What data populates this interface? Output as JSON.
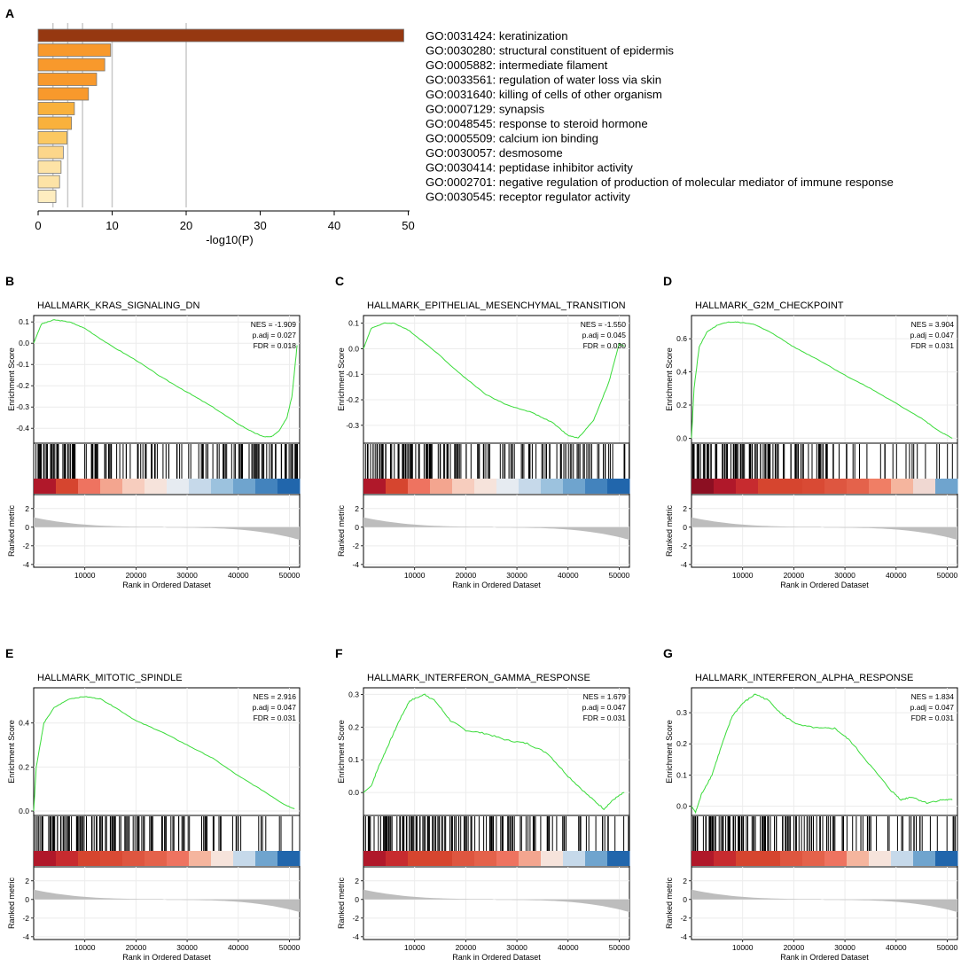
{
  "panel_a": {
    "letter": "A",
    "xlabel": "-log10(P)",
    "ticks": [
      0,
      10,
      20,
      30,
      40,
      50
    ],
    "terms": [
      {
        "label": "GO:0031424: keratinization",
        "value": 49.4,
        "color": "#963811"
      },
      {
        "label": "GO:0030280: structural constituent of epidermis",
        "value": 9.8,
        "color": "#F8992C"
      },
      {
        "label": "GO:0005882: intermediate filament",
        "value": 9.0,
        "color": "#F8992C"
      },
      {
        "label": "GO:0033561: regulation of water loss via skin",
        "value": 7.9,
        "color": "#F8992C"
      },
      {
        "label": "GO:0031640: killing of cells of other organism",
        "value": 6.8,
        "color": "#F8992C"
      },
      {
        "label": "GO:0007129: synapsis",
        "value": 4.9,
        "color": "#F9B13C"
      },
      {
        "label": "GO:0048545: response to steroid hormone",
        "value": 4.5,
        "color": "#F9B13C"
      },
      {
        "label": "GO:0005509: calcium ion binding",
        "value": 3.9,
        "color": "#FBC862"
      },
      {
        "label": "GO:0030057: desmosome",
        "value": 3.4,
        "color": "#FCD68A"
      },
      {
        "label": "GO:0030414: peptidase inhibitor activity",
        "value": 3.1,
        "color": "#FDE3A6"
      },
      {
        "label": "GO:0002701: negative regulation of production of molecular mediator of immune response",
        "value": 2.9,
        "color": "#FDE3A6"
      },
      {
        "label": "GO:0030545: receptor regulator activity",
        "value": 2.4,
        "color": "#FEEDC0"
      }
    ]
  },
  "gsea_common": {
    "ylabel_es": "Enrichment Score",
    "ylabel_rank": "Ranked metric",
    "xlabel": "Rank in Ordered Dataset",
    "x_ticks": [
      "10000",
      "20000",
      "30000",
      "40000",
      "50000"
    ],
    "rank_ticks": [
      "2",
      "0",
      "-2",
      "-4"
    ],
    "line_color": "#3ADB3A"
  },
  "chart_data": [
    {
      "type": "bar",
      "title": "GO enrichment",
      "xlabel": "-log10(P)",
      "orientation": "horizontal",
      "categories": [
        "GO:0031424: keratinization",
        "GO:0030280: structural constituent of epidermis",
        "GO:0005882: intermediate filament",
        "GO:0033561: regulation of water loss via skin",
        "GO:0031640: killing of cells of other organism",
        "GO:0007129: synapsis",
        "GO:0048545: response to steroid hormone",
        "GO:0005509: calcium ion binding",
        "GO:0030057: desmosome",
        "GO:0030414: peptidase inhibitor activity",
        "GO:0002701: negative regulation of production of molecular mediator of immune response",
        "GO:0030545: receptor regulator activity"
      ],
      "values": [
        49.4,
        9.8,
        9.0,
        7.9,
        6.8,
        4.9,
        4.5,
        3.9,
        3.4,
        3.1,
        2.9,
        2.4
      ],
      "xlim": [
        0,
        50
      ]
    },
    {
      "type": "line",
      "panel": "B",
      "title": "HALLMARK_KRAS_SIGNALING_DN",
      "stats": {
        "nes": "NES = -1.909",
        "padj": "p.adj = 0.027",
        "fdr": "FDR = 0.018"
      },
      "ylim": [
        -0.47,
        0.13
      ],
      "y_ticks": [
        "0.1",
        "0.0",
        "-0.1",
        "-0.2",
        "-0.3",
        "-0.4"
      ],
      "y_tick_vals": [
        0.1,
        0.0,
        -0.1,
        -0.2,
        -0.3,
        -0.4
      ],
      "x": [
        0,
        1500,
        4000,
        7000,
        10000,
        15000,
        20000,
        25000,
        30000,
        35000,
        40000,
        43000,
        45000,
        46500,
        48000,
        49500,
        50500,
        51500
      ],
      "y": [
        0.0,
        0.09,
        0.11,
        0.1,
        0.07,
        -0.01,
        -0.08,
        -0.16,
        -0.23,
        -0.3,
        -0.38,
        -0.42,
        -0.44,
        -0.44,
        -0.41,
        -0.35,
        -0.25,
        -0.01
      ],
      "hit_density": [
        1.0,
        0.95,
        0.7,
        0.55,
        0.5,
        0.55,
        0.45,
        0.5,
        0.55,
        0.7,
        0.9,
        0.95
      ],
      "heat": [
        "#B0182A",
        "#D6452F",
        "#EE7360",
        "#F3A58F",
        "#F7CDBE",
        "#F6E3DB",
        "#E6EBF1",
        "#C6D9EA",
        "#9CC2DE",
        "#6FA4CE",
        "#4383BD",
        "#2166AC"
      ]
    },
    {
      "type": "line",
      "panel": "C",
      "title": "HALLMARK_EPITHELIAL_MESENCHYMAL_TRANSITION",
      "stats": {
        "nes": "NES = -1.550",
        "padj": "p.adj = 0.045",
        "fdr": "FDR = 0.030"
      },
      "ylim": [
        -0.37,
        0.13
      ],
      "y_ticks": [
        "0.1",
        "0.0",
        "-0.1",
        "-0.2",
        "-0.3"
      ],
      "y_tick_vals": [
        0.1,
        0.0,
        -0.1,
        -0.2,
        -0.3
      ],
      "x": [
        0,
        1500,
        4000,
        6000,
        9000,
        14000,
        19000,
        24000,
        28000,
        33000,
        37000,
        40000,
        42000,
        45000,
        48000,
        50000,
        51000
      ],
      "y": [
        0.0,
        0.08,
        0.1,
        0.1,
        0.07,
        -0.01,
        -0.1,
        -0.18,
        -0.22,
        -0.25,
        -0.29,
        -0.34,
        -0.35,
        -0.28,
        -0.13,
        0.02,
        0.01
      ],
      "hit_density": [
        1.0,
        0.95,
        0.9,
        0.75,
        0.6,
        0.5,
        0.55,
        0.45,
        0.55,
        0.7,
        0.5,
        0.35
      ],
      "heat": [
        "#B0182A",
        "#D6452F",
        "#EE7360",
        "#F3A58F",
        "#F7CDBE",
        "#F6E3DB",
        "#E6EBF1",
        "#C6D9EA",
        "#9CC2DE",
        "#6FA4CE",
        "#4383BD",
        "#2166AC"
      ]
    },
    {
      "type": "line",
      "panel": "D",
      "title": "HALLMARK_G2M_CHECKPOINT",
      "stats": {
        "nes": "NES = 3.904",
        "padj": "p.adj = 0.047",
        "fdr": "FDR = 0.031"
      },
      "ylim": [
        -0.03,
        0.74
      ],
      "y_ticks": [
        "0.6",
        "0.4",
        "0.2",
        "0.0"
      ],
      "y_tick_vals": [
        0.6,
        0.4,
        0.2,
        0.0
      ],
      "x": [
        0,
        500,
        1500,
        3000,
        5000,
        7000,
        9000,
        12000,
        16000,
        20000,
        25000,
        30000,
        35000,
        40000,
        45000,
        48000,
        51000
      ],
      "y": [
        0.0,
        0.3,
        0.55,
        0.64,
        0.68,
        0.7,
        0.7,
        0.69,
        0.63,
        0.55,
        0.47,
        0.38,
        0.3,
        0.21,
        0.12,
        0.05,
        0.0
      ],
      "hit_density": [
        1.0,
        1.0,
        0.95,
        0.9,
        0.7,
        0.6,
        0.4,
        0.3,
        0.2,
        0.25,
        0.15,
        0.2
      ],
      "heat": [
        "#8C0F22",
        "#B0182A",
        "#C72B2F",
        "#D6452F",
        "#D6452F",
        "#D94A34",
        "#DE5640",
        "#E4624B",
        "#F07E65",
        "#F5B59E",
        "#F0D8D2",
        "#6FA4CE"
      ]
    },
    {
      "type": "line",
      "panel": "E",
      "title": "HALLMARK_MITOTIC_SPINDLE",
      "stats": {
        "nes": "NES = 2.916",
        "padj": "p.adj = 0.047",
        "fdr": "FDR = 0.031"
      },
      "ylim": [
        -0.02,
        0.56
      ],
      "y_ticks": [
        "0.4",
        "0.2",
        "0.0"
      ],
      "y_tick_vals": [
        0.4,
        0.2,
        0.0
      ],
      "x": [
        0,
        500,
        2000,
        4000,
        7000,
        10000,
        13000,
        16000,
        20000,
        25000,
        30000,
        35000,
        40000,
        45000,
        49000,
        51000
      ],
      "y": [
        0.0,
        0.2,
        0.4,
        0.47,
        0.51,
        0.52,
        0.51,
        0.47,
        0.41,
        0.36,
        0.3,
        0.24,
        0.16,
        0.09,
        0.03,
        0.01
      ],
      "hit_density": [
        1.0,
        1.0,
        0.95,
        0.85,
        0.75,
        0.6,
        0.55,
        0.4,
        0.35,
        0.25,
        0.2,
        0.15
      ],
      "heat": [
        "#B0182A",
        "#C72B2F",
        "#D6452F",
        "#D94A34",
        "#DE5640",
        "#E4624B",
        "#EE7360",
        "#F5B59E",
        "#F6E3DB",
        "#C6D9EA",
        "#6FA4CE",
        "#2166AC"
      ]
    },
    {
      "type": "line",
      "panel": "F",
      "title": "HALLMARK_INTERFERON_GAMMA_RESPONSE",
      "stats": {
        "nes": "NES = 1.679",
        "padj": "p.adj = 0.047",
        "fdr": "FDR = 0.031"
      },
      "ylim": [
        -0.07,
        0.32
      ],
      "y_ticks": [
        "0.3",
        "0.2",
        "0.1",
        "0.0"
      ],
      "y_tick_vals": [
        0.3,
        0.2,
        0.1,
        0.0
      ],
      "x": [
        0,
        1500,
        3000,
        5000,
        7000,
        9000,
        12000,
        14000,
        17000,
        20000,
        24000,
        28000,
        32000,
        36000,
        40000,
        44000,
        47000,
        49000,
        51000
      ],
      "y": [
        0.0,
        0.02,
        0.08,
        0.15,
        0.22,
        0.28,
        0.3,
        0.28,
        0.22,
        0.19,
        0.18,
        0.16,
        0.15,
        0.12,
        0.05,
        -0.01,
        -0.05,
        -0.02,
        0.0
      ],
      "hit_density": [
        1.0,
        1.0,
        0.95,
        0.9,
        0.8,
        0.7,
        0.6,
        0.55,
        0.45,
        0.4,
        0.35,
        0.3
      ],
      "heat": [
        "#B0182A",
        "#C72B2F",
        "#D6452F",
        "#D6452F",
        "#DE5640",
        "#E4624B",
        "#EE7360",
        "#F3A58F",
        "#F6E3DB",
        "#C6D9EA",
        "#6FA4CE",
        "#2166AC"
      ]
    },
    {
      "type": "line",
      "panel": "G",
      "title": "HALLMARK_INTERFERON_ALPHA_RESPONSE",
      "stats": {
        "nes": "NES = 1.834",
        "padj": "p.adj = 0.047",
        "fdr": "FDR = 0.031"
      },
      "ylim": [
        -0.03,
        0.38
      ],
      "y_ticks": [
        "0.3",
        "0.2",
        "0.1",
        "0.0"
      ],
      "y_tick_vals": [
        0.3,
        0.2,
        0.1,
        0.0
      ],
      "x": [
        0,
        800,
        2000,
        4000,
        6000,
        8000,
        10000,
        12500,
        15000,
        18000,
        21000,
        25000,
        28000,
        31000,
        35000,
        39000,
        41000,
        43000,
        46000,
        49000,
        51000
      ],
      "y": [
        0.0,
        -0.02,
        0.04,
        0.1,
        0.2,
        0.29,
        0.33,
        0.36,
        0.34,
        0.29,
        0.26,
        0.25,
        0.25,
        0.21,
        0.13,
        0.05,
        0.02,
        0.03,
        0.01,
        0.02,
        0.02
      ],
      "hit_density": [
        1.0,
        1.0,
        0.95,
        0.85,
        0.8,
        0.65,
        0.55,
        0.45,
        0.35,
        0.3,
        0.4,
        0.3
      ],
      "heat": [
        "#B0182A",
        "#C72B2F",
        "#D6452F",
        "#D6452F",
        "#DE5640",
        "#E4624B",
        "#EE7360",
        "#F5B59E",
        "#F6E3DB",
        "#C6D9EA",
        "#6FA4CE",
        "#2166AC"
      ]
    }
  ]
}
